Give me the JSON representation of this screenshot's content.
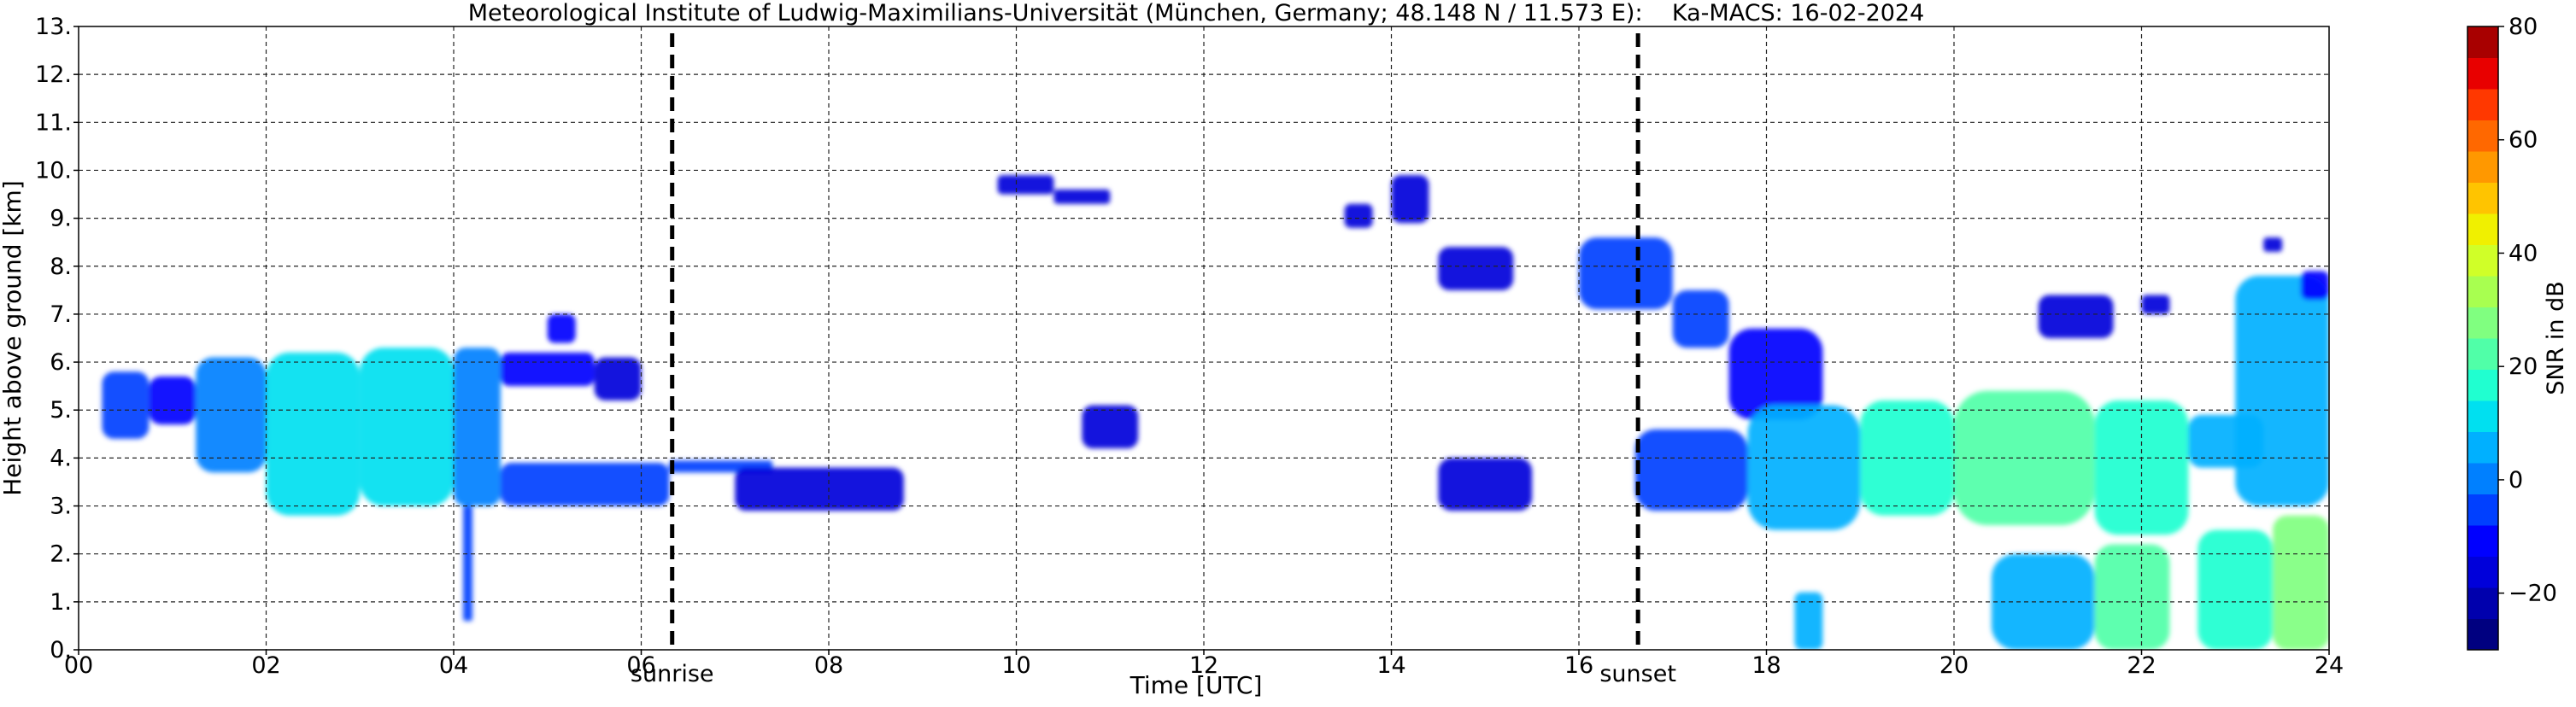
{
  "chart_data": {
    "type": "heatmap",
    "title": "Meteorological Institute of Ludwig-Maximilians-Universität (München, Germany; 48.148 N / 11.573 E):    Ka-MACS: 16-02-2024",
    "xlabel": "Time [UTC]",
    "ylabel": "Height above ground [km]",
    "xlim": [
      0,
      24
    ],
    "ylim": [
      0,
      13
    ],
    "xticks": [
      "00",
      "02",
      "04",
      "06",
      "08",
      "10",
      "12",
      "14",
      "16",
      "18",
      "20",
      "22",
      "24"
    ],
    "yticks": [
      "0.",
      "1.",
      "2.",
      "3.",
      "4.",
      "5.",
      "6.",
      "7.",
      "8.",
      "9.",
      "10.",
      "11.",
      "12.",
      "13."
    ],
    "grid": true,
    "grid_style": "dashed",
    "annotations": [
      {
        "label": "sunrise",
        "x": 6.33
      },
      {
        "label": "sunset",
        "x": 16.63
      }
    ],
    "colorbar": {
      "label": "SNR in dB",
      "range": [
        -30,
        80
      ],
      "ticks": [
        "80",
        "60",
        "40",
        "20",
        "0",
        "−20"
      ],
      "colors": [
        "#000080",
        "#0000ad",
        "#0000da",
        "#0000ff",
        "#0040ff",
        "#0080ff",
        "#00b0ff",
        "#00e0f0",
        "#20ffd0",
        "#50ffa8",
        "#80ff80",
        "#a8ff50",
        "#d0ff28",
        "#f0f000",
        "#ffc400",
        "#ff9800",
        "#ff6800",
        "#ff3800",
        "#e80000",
        "#a80000"
      ]
    },
    "echo_regions": [
      {
        "t0": 0.25,
        "t1": 0.75,
        "h0": 4.4,
        "h1": 5.8,
        "snr": -8
      },
      {
        "t0": 0.75,
        "t1": 1.25,
        "h0": 4.7,
        "h1": 5.7,
        "snr": -10
      },
      {
        "t0": 1.25,
        "t1": 2.0,
        "h0": 3.7,
        "h1": 6.1,
        "snr": 2
      },
      {
        "t0": 2.0,
        "t1": 3.0,
        "h0": 2.8,
        "h1": 6.2,
        "snr": 12
      },
      {
        "t0": 3.0,
        "t1": 4.0,
        "h0": 3.0,
        "h1": 6.3,
        "snr": 10
      },
      {
        "t0": 4.0,
        "t1": 4.5,
        "h0": 3.0,
        "h1": 6.3,
        "snr": 2
      },
      {
        "t0": 4.5,
        "t1": 5.5,
        "h0": 5.5,
        "h1": 6.2,
        "snr": -10
      },
      {
        "t0": 5.5,
        "t1": 6.0,
        "h0": 5.2,
        "h1": 6.1,
        "snr": -14
      },
      {
        "t0": 4.1,
        "t1": 4.2,
        "h0": 0.6,
        "h1": 3.0,
        "snr": -4
      },
      {
        "t0": 4.5,
        "t1": 6.3,
        "h0": 3.0,
        "h1": 3.9,
        "snr": -6
      },
      {
        "t0": 6.3,
        "t1": 7.4,
        "h0": 3.7,
        "h1": 3.95,
        "snr": -8
      },
      {
        "t0": 7.0,
        "t1": 8.8,
        "h0": 2.9,
        "h1": 3.8,
        "snr": -14
      },
      {
        "t0": 5.0,
        "t1": 5.3,
        "h0": 6.4,
        "h1": 7.0,
        "snr": -12
      },
      {
        "t0": 9.8,
        "t1": 10.4,
        "h0": 9.5,
        "h1": 9.9,
        "snr": -18
      },
      {
        "t0": 10.4,
        "t1": 11.0,
        "h0": 9.3,
        "h1": 9.6,
        "snr": -18
      },
      {
        "t0": 10.7,
        "t1": 11.3,
        "h0": 4.2,
        "h1": 5.1,
        "snr": -16
      },
      {
        "t0": 13.5,
        "t1": 13.8,
        "h0": 8.8,
        "h1": 9.3,
        "snr": -16
      },
      {
        "t0": 14.0,
        "t1": 14.4,
        "h0": 8.9,
        "h1": 9.9,
        "snr": -16
      },
      {
        "t0": 14.5,
        "t1": 15.3,
        "h0": 7.5,
        "h1": 8.4,
        "snr": -16
      },
      {
        "t0": 14.5,
        "t1": 15.5,
        "h0": 2.9,
        "h1": 4.0,
        "snr": -16
      },
      {
        "t0": 16.0,
        "t1": 17.0,
        "h0": 7.1,
        "h1": 8.6,
        "snr": -8
      },
      {
        "t0": 17.0,
        "t1": 17.6,
        "h0": 6.3,
        "h1": 7.5,
        "snr": -8
      },
      {
        "t0": 17.6,
        "t1": 18.6,
        "h0": 4.8,
        "h1": 6.7,
        "snr": -12
      },
      {
        "t0": 16.6,
        "t1": 17.8,
        "h0": 2.9,
        "h1": 4.6,
        "snr": -6
      },
      {
        "t0": 17.8,
        "t1": 19.0,
        "h0": 2.5,
        "h1": 5.1,
        "snr": 6
      },
      {
        "t0": 19.0,
        "t1": 20.0,
        "h0": 2.8,
        "h1": 5.2,
        "snr": 14
      },
      {
        "t0": 20.0,
        "t1": 21.5,
        "h0": 2.6,
        "h1": 5.4,
        "snr": 20
      },
      {
        "t0": 21.5,
        "t1": 22.5,
        "h0": 2.4,
        "h1": 5.2,
        "snr": 18
      },
      {
        "t0": 22.5,
        "t1": 23.3,
        "h0": 3.8,
        "h1": 4.9,
        "snr": 6
      },
      {
        "t0": 23.0,
        "t1": 24.0,
        "h0": 3.0,
        "h1": 7.8,
        "snr": 8
      },
      {
        "t0": 20.4,
        "t1": 21.5,
        "h0": 0.0,
        "h1": 2.0,
        "snr": 8
      },
      {
        "t0": 21.5,
        "t1": 22.3,
        "h0": 0.0,
        "h1": 2.2,
        "snr": 22
      },
      {
        "t0": 22.6,
        "t1": 23.4,
        "h0": 0.0,
        "h1": 2.5,
        "snr": 18
      },
      {
        "t0": 23.4,
        "t1": 24.0,
        "h0": 0.0,
        "h1": 2.8,
        "snr": 30
      },
      {
        "t0": 18.3,
        "t1": 18.6,
        "h0": 0.0,
        "h1": 1.2,
        "snr": 6
      },
      {
        "t0": 20.9,
        "t1": 21.7,
        "h0": 6.5,
        "h1": 7.4,
        "snr": -16
      },
      {
        "t0": 22.0,
        "t1": 22.3,
        "h0": 7.0,
        "h1": 7.4,
        "snr": -18
      },
      {
        "t0": 23.7,
        "t1": 24.0,
        "h0": 7.3,
        "h1": 7.9,
        "snr": -10
      },
      {
        "t0": 23.3,
        "t1": 23.5,
        "h0": 8.3,
        "h1": 8.6,
        "snr": -18
      }
    ]
  }
}
